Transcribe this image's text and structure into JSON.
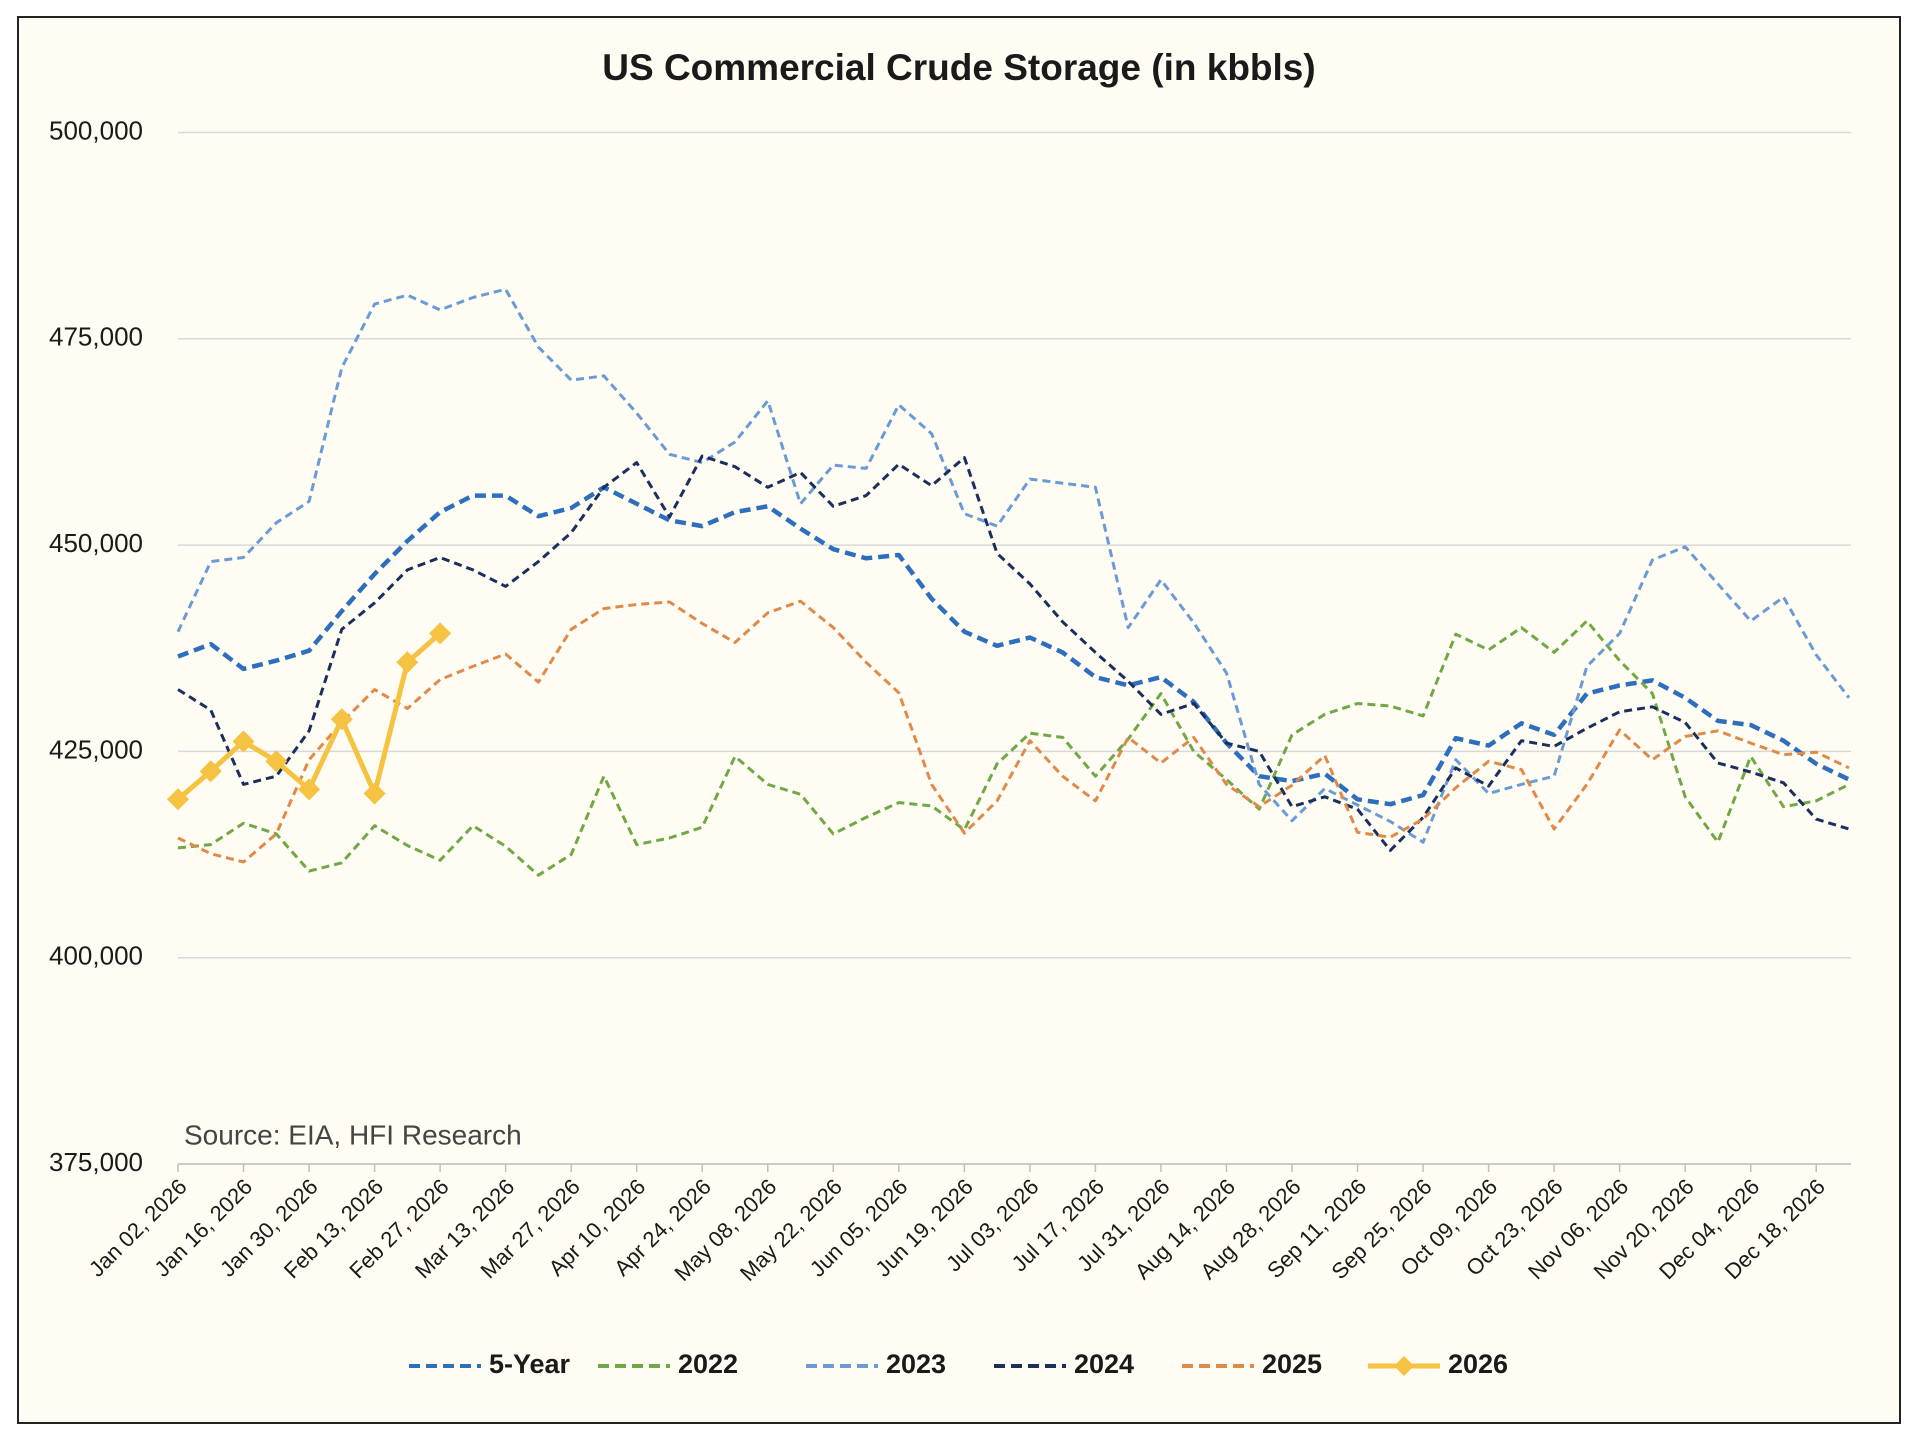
{
  "chart_data": {
    "type": "line",
    "title": "US Commercial Crude Storage (in kbbls)",
    "annotations": [
      "Source: EIA, HFI Research"
    ],
    "categories": [
      "Jan 02, 2026",
      null,
      "Jan 16, 2026",
      null,
      "Jan 30, 2026",
      null,
      "Feb 13, 2026",
      null,
      "Feb 27, 2026",
      null,
      "Mar 13, 2026",
      null,
      "Mar 27, 2026",
      null,
      "Apr 10, 2026",
      null,
      "Apr 24, 2026",
      null,
      "May 08, 2026",
      null,
      "May 22, 2026",
      null,
      "Jun 05, 2026",
      null,
      "Jun 19, 2026",
      null,
      "Jul 03, 2026",
      null,
      "Jul 17, 2026",
      null,
      "Jul 31, 2026",
      null,
      "Aug 14, 2026",
      null,
      "Aug 28, 2026",
      null,
      "Sep 11, 2026",
      null,
      "Sep 25, 2026",
      null,
      "Oct 09, 2026",
      null,
      "Oct 23, 2026",
      null,
      "Nov 06, 2026",
      null,
      "Nov 20, 2026",
      null,
      "Dec 04, 2026",
      null,
      "Dec 18, 2026",
      null
    ],
    "ylim": [
      375000,
      500000
    ],
    "yticks": [
      {
        "value": 375000,
        "label": "375,000"
      },
      {
        "value": 400000,
        "label": "400,000"
      },
      {
        "value": 425000,
        "label": "425,000"
      },
      {
        "value": 450000,
        "label": "450,000"
      },
      {
        "value": 475000,
        "label": "475,000"
      },
      {
        "value": 500000,
        "label": "500,000"
      }
    ],
    "grid": true,
    "legend": "bottom",
    "series": [
      {
        "name": "5-Year",
        "color": "#2e6fbd",
        "style": "dashed",
        "values": [
          436500,
          438000,
          435000,
          436000,
          437200,
          442000,
          446500,
          450500,
          454000,
          456000,
          456000,
          453500,
          454500,
          457000,
          455000,
          453000,
          452300,
          454000,
          454700,
          452000,
          449500,
          448400,
          448800,
          443500,
          439500,
          437800,
          438800,
          437000,
          434000,
          433000,
          434000,
          431000,
          426000,
          422000,
          421400,
          422300,
          419200,
          418600,
          419700,
          426600,
          425700,
          428400,
          427000,
          432000,
          433000,
          433600,
          431500,
          428700,
          428200,
          426300,
          423500,
          421600
        ]
      },
      {
        "name": "2022",
        "color": "#70a845",
        "style": "dashed",
        "values": [
          413300,
          413700,
          416300,
          415000,
          410500,
          411500,
          416000,
          413600,
          411800,
          416000,
          413500,
          410000,
          412500,
          422000,
          413700,
          414500,
          415800,
          424400,
          421000,
          419800,
          415000,
          417000,
          418800,
          418400,
          415500,
          423500,
          427200,
          426700,
          422000,
          426500,
          432000,
          425000,
          421600,
          418000,
          427000,
          429500,
          430800,
          430500,
          429300,
          439200,
          437300,
          440000,
          437000,
          440800,
          436000,
          432000,
          419500,
          414000,
          424400,
          418300,
          419000,
          421000
        ]
      },
      {
        "name": "2023",
        "color": "#6a9bd6",
        "style": "dashed",
        "values": [
          439500,
          448000,
          448500,
          452700,
          455300,
          471500,
          479200,
          480300,
          478500,
          480000,
          481000,
          474000,
          470000,
          470500,
          466000,
          461000,
          460000,
          462500,
          467500,
          455000,
          459700,
          459300,
          467000,
          463500,
          453800,
          452300,
          458000,
          457500,
          457000,
          440000,
          445800,
          440600,
          434500,
          421000,
          416600,
          420500,
          418500,
          416500,
          414000,
          424000,
          419900,
          421000,
          422000,
          435300,
          439300,
          448200,
          449800,
          445300,
          440800,
          443700,
          436700,
          431500
        ]
      },
      {
        "name": "2024",
        "color": "#1a2f5e",
        "style": "dashed",
        "values": [
          432500,
          430000,
          421000,
          422000,
          427500,
          439800,
          443000,
          447000,
          448500,
          447000,
          445000,
          448000,
          451500,
          457000,
          460000,
          453400,
          460800,
          459500,
          457000,
          458800,
          454700,
          456000,
          459800,
          457200,
          460600,
          449000,
          445300,
          440700,
          437000,
          433500,
          429500,
          430800,
          426000,
          425000,
          418300,
          419500,
          418000,
          413000,
          417000,
          423000,
          420800,
          426300,
          425600,
          427800,
          429800,
          430400,
          428500,
          423600,
          422500,
          421200,
          416800,
          415600
        ]
      },
      {
        "name": "2025",
        "color": "#e08a4a",
        "style": "dashed",
        "values": [
          414500,
          412600,
          411600,
          415000,
          424000,
          428500,
          432500,
          430200,
          433700,
          435300,
          436800,
          433400,
          439800,
          442300,
          442800,
          443100,
          440500,
          438200,
          441800,
          443200,
          440000,
          435800,
          432100,
          421000,
          415100,
          419000,
          426300,
          422000,
          419000,
          426700,
          423600,
          426700,
          421000,
          418300,
          420900,
          424500,
          415200,
          414600,
          416800,
          420600,
          423800,
          422800,
          415600,
          421000,
          427600,
          424000,
          426800,
          427500,
          426000,
          424600,
          424900,
          423000
        ]
      },
      {
        "name": "2026",
        "color": "#f5c242",
        "style": "solid",
        "marker": "diamond",
        "values": [
          419200,
          422600,
          426200,
          423800,
          420400,
          428900,
          419900,
          435800,
          439300,
          null,
          null,
          null,
          null,
          null,
          null,
          null,
          null,
          null,
          null,
          null,
          null,
          null,
          null,
          null,
          null,
          null,
          null,
          null,
          null,
          null,
          null,
          null,
          null,
          null,
          null,
          null,
          null,
          null,
          null,
          null,
          null,
          null,
          null,
          null,
          null,
          null,
          null,
          null,
          null,
          null,
          null,
          null
        ]
      }
    ]
  }
}
